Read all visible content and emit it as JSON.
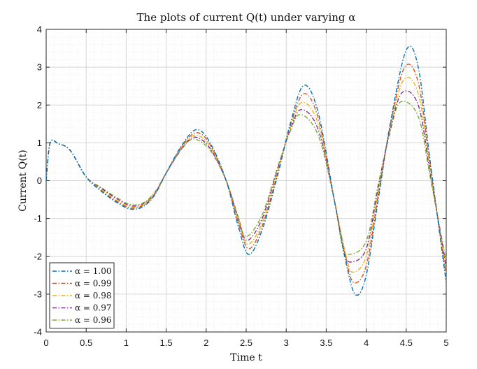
{
  "chart_data": {
    "type": "line",
    "title": "The plots of current Q(t) under varying α",
    "xlabel": "Time t",
    "ylabel": "Current Q(t)",
    "xlim": [
      0,
      5
    ],
    "ylim": [
      -4,
      4
    ],
    "xticks": [
      "0",
      "0.5",
      "1",
      "1.5",
      "2",
      "2.5",
      "3",
      "3.5",
      "4",
      "4.5",
      "5"
    ],
    "yticks": [
      "4",
      "3",
      "2",
      "1",
      "0",
      "-1",
      "-2",
      "-3",
      "-4"
    ],
    "grid": true,
    "minor_grid": true,
    "legend_position": "bottom-left",
    "line_style": "dash-dot",
    "series": [
      {
        "name": "α = 1.00",
        "color": "#0072BD",
        "x": [
          0,
          0.05,
          0.15,
          0.3,
          0.5,
          0.7,
          0.9,
          1.05,
          1.2,
          1.35,
          1.5,
          1.7,
          1.88,
          2.05,
          2.25,
          2.4,
          2.53,
          2.7,
          2.9,
          3.05,
          3.22,
          3.4,
          3.6,
          3.75,
          3.87,
          4.0,
          4.15,
          4.3,
          4.5,
          4.65,
          4.8,
          5.0
        ],
        "y": [
          0,
          1.0,
          0.98,
          0.8,
          0.1,
          -0.3,
          -0.6,
          -0.75,
          -0.7,
          -0.4,
          0.2,
          0.95,
          1.35,
          1.0,
          0.0,
          -1.2,
          -1.95,
          -1.3,
          0.2,
          1.5,
          2.52,
          1.8,
          -0.5,
          -2.2,
          -3.02,
          -2.5,
          -0.5,
          1.5,
          3.45,
          3.0,
          0.5,
          -2.7
        ]
      },
      {
        "name": "α = 0.99",
        "color": "#D95319",
        "x": [
          0,
          0.05,
          0.15,
          0.3,
          0.5,
          0.7,
          0.9,
          1.05,
          1.2,
          1.35,
          1.5,
          1.7,
          1.88,
          2.05,
          2.25,
          2.4,
          2.53,
          2.7,
          2.9,
          3.05,
          3.22,
          3.4,
          3.6,
          3.75,
          3.85,
          4.0,
          4.15,
          4.3,
          4.48,
          4.65,
          4.8,
          5.0
        ],
        "y": [
          0,
          1.0,
          0.98,
          0.8,
          0.1,
          -0.28,
          -0.57,
          -0.72,
          -0.67,
          -0.38,
          0.2,
          0.92,
          1.27,
          0.95,
          0.0,
          -1.1,
          -1.8,
          -1.2,
          0.25,
          1.45,
          2.3,
          1.65,
          -0.5,
          -2.1,
          -2.7,
          -2.25,
          -0.4,
          1.45,
          3.0,
          2.6,
          0.4,
          -2.55
        ]
      },
      {
        "name": "α = 0.98",
        "color": "#EDB120",
        "x": [
          0,
          0.05,
          0.15,
          0.3,
          0.5,
          0.7,
          0.9,
          1.05,
          1.2,
          1.35,
          1.5,
          1.7,
          1.87,
          2.05,
          2.25,
          2.4,
          2.52,
          2.7,
          2.9,
          3.05,
          3.2,
          3.4,
          3.6,
          3.75,
          3.83,
          4.0,
          4.15,
          4.3,
          4.47,
          4.65,
          4.8,
          5.0
        ],
        "y": [
          0,
          1.0,
          0.98,
          0.8,
          0.1,
          -0.25,
          -0.54,
          -0.69,
          -0.65,
          -0.36,
          0.2,
          0.9,
          1.2,
          0.9,
          0.0,
          -1.05,
          -1.68,
          -1.1,
          0.3,
          1.4,
          2.07,
          1.5,
          -0.5,
          -2.0,
          -2.42,
          -2.0,
          -0.3,
          1.4,
          2.67,
          2.3,
          0.3,
          -2.45
        ]
      },
      {
        "name": "α = 0.97",
        "color": "#7E2F8E",
        "x": [
          0,
          0.05,
          0.15,
          0.3,
          0.5,
          0.7,
          0.9,
          1.05,
          1.2,
          1.35,
          1.5,
          1.7,
          1.86,
          2.05,
          2.25,
          2.4,
          2.51,
          2.7,
          2.9,
          3.05,
          3.19,
          3.4,
          3.6,
          3.72,
          3.81,
          4.0,
          4.15,
          4.3,
          4.45,
          4.65,
          4.8,
          5.0
        ],
        "y": [
          0,
          1.0,
          0.98,
          0.8,
          0.1,
          -0.22,
          -0.5,
          -0.66,
          -0.63,
          -0.35,
          0.2,
          0.87,
          1.15,
          0.85,
          0.0,
          -1.0,
          -1.58,
          -1.0,
          0.35,
          1.35,
          1.88,
          1.35,
          -0.5,
          -1.85,
          -2.15,
          -1.8,
          -0.2,
          1.35,
          2.33,
          2.0,
          0.2,
          -2.3
        ]
      },
      {
        "name": "α = 0.96",
        "color": "#77AC30",
        "x": [
          0,
          0.05,
          0.15,
          0.3,
          0.5,
          0.7,
          0.9,
          1.05,
          1.2,
          1.35,
          1.5,
          1.7,
          1.85,
          2.05,
          2.25,
          2.4,
          2.5,
          2.7,
          2.9,
          3.05,
          3.18,
          3.4,
          3.6,
          3.7,
          3.79,
          4.0,
          4.15,
          4.3,
          4.43,
          4.65,
          4.8,
          5.0
        ],
        "y": [
          0,
          1.0,
          0.98,
          0.8,
          0.1,
          -0.2,
          -0.47,
          -0.63,
          -0.6,
          -0.33,
          0.2,
          0.85,
          1.1,
          0.8,
          0.0,
          -0.95,
          -1.48,
          -0.9,
          0.4,
          1.3,
          1.75,
          1.2,
          -0.5,
          -1.7,
          -1.95,
          -1.6,
          -0.1,
          1.3,
          2.08,
          1.7,
          0.1,
          -2.15
        ]
      }
    ],
    "legend": {
      "entries": [
        "α = 1.00",
        "α = 0.99",
        "α = 0.98",
        "α = 0.97",
        "α = 0.96"
      ]
    }
  }
}
